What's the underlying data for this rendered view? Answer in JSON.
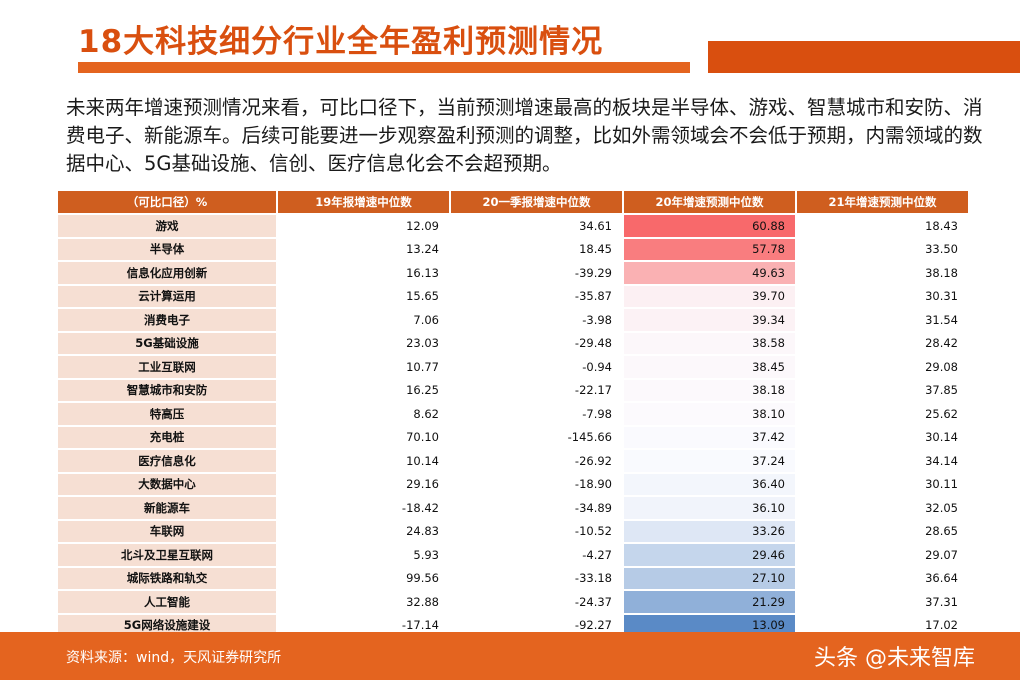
{
  "title": "18大科技细分行业全年盈利预测情况",
  "description": "未来两年增速预测情况来看，可比口径下，当前预测增速最高的板块是半导体、游戏、智慧城市和安防、消费电子、新能源车。后续可能要进一步观察盈利预测的调整，比如外需领域会不会低于预期，内需领域的数据中心、5G基础设施、信创、医疗信息化会不会超预期。",
  "table": {
    "headers": [
      "（可比口径）%",
      "19年报增速中位数",
      "20一季报增速中位数",
      "20年增速预测中位数",
      "21年增速预测中位数"
    ],
    "rows": [
      {
        "name": "游戏",
        "v19": "12.09",
        "q1": "34.61",
        "f20": "60.88",
        "f21": "18.43"
      },
      {
        "name": "半导体",
        "v19": "13.24",
        "q1": "18.45",
        "f20": "57.78",
        "f21": "33.50"
      },
      {
        "name": "信息化应用创新",
        "v19": "16.13",
        "q1": "-39.29",
        "f20": "49.63",
        "f21": "38.18"
      },
      {
        "name": "云计算运用",
        "v19": "15.65",
        "q1": "-35.87",
        "f20": "39.70",
        "f21": "30.31"
      },
      {
        "name": "消费电子",
        "v19": "7.06",
        "q1": "-3.98",
        "f20": "39.34",
        "f21": "31.54"
      },
      {
        "name": "5G基础设施",
        "v19": "23.03",
        "q1": "-29.48",
        "f20": "38.58",
        "f21": "28.42"
      },
      {
        "name": "工业互联网",
        "v19": "10.77",
        "q1": "-0.94",
        "f20": "38.45",
        "f21": "29.08"
      },
      {
        "name": "智慧城市和安防",
        "v19": "16.25",
        "q1": "-22.17",
        "f20": "38.18",
        "f21": "37.85"
      },
      {
        "name": "特高压",
        "v19": "8.62",
        "q1": "-7.98",
        "f20": "38.10",
        "f21": "25.62"
      },
      {
        "name": "充电桩",
        "v19": "70.10",
        "q1": "-145.66",
        "f20": "37.42",
        "f21": "30.14"
      },
      {
        "name": "医疗信息化",
        "v19": "10.14",
        "q1": "-26.92",
        "f20": "37.24",
        "f21": "34.14"
      },
      {
        "name": "大数据中心",
        "v19": "29.16",
        "q1": "-18.90",
        "f20": "36.40",
        "f21": "30.11"
      },
      {
        "name": "新能源车",
        "v19": "-18.42",
        "q1": "-34.89",
        "f20": "36.10",
        "f21": "32.05"
      },
      {
        "name": "车联网",
        "v19": "24.83",
        "q1": "-10.52",
        "f20": "33.26",
        "f21": "28.65"
      },
      {
        "name": "北斗及卫星互联网",
        "v19": "5.93",
        "q1": "-4.27",
        "f20": "29.46",
        "f21": "29.07"
      },
      {
        "name": "城际铁路和轨交",
        "v19": "99.56",
        "q1": "-33.18",
        "f20": "27.10",
        "f21": "36.64"
      },
      {
        "name": "人工智能",
        "v19": "32.88",
        "q1": "-24.37",
        "f20": "21.29",
        "f21": "37.31"
      },
      {
        "name": "5G网络设施建设",
        "v19": "-17.14",
        "q1": "-92.27",
        "f20": "13.09",
        "f21": "17.02"
      }
    ]
  },
  "heat_colors": {
    "high": "#f8696b",
    "mid": "#fcfcff",
    "low": "#5a8ac6"
  },
  "source": "资料来源：wind，天风证券研究所",
  "watermark": "头条 @未来智库"
}
